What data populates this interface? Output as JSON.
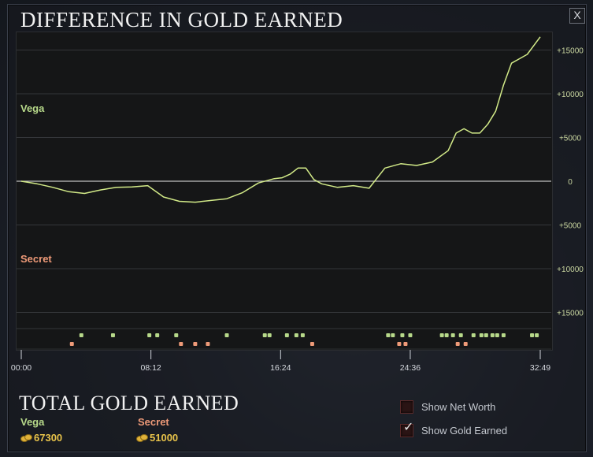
{
  "window": {
    "title": "DIFFERENCE IN GOLD EARNED",
    "close_label": "X"
  },
  "legend_labels": {
    "top_team": "Vega",
    "bottom_team": "Secret"
  },
  "colors": {
    "vega": "#b7d98a",
    "secret": "#ee9a78",
    "gold": "#e8c34a",
    "line": "#d2ea88",
    "zero_line": "#bfbfbf",
    "y_tick": "#c9d6a0"
  },
  "chart_data": {
    "type": "line",
    "title": "DIFFERENCE IN GOLD EARNED",
    "x_ticks": [
      "00:00",
      "08:12",
      "16:24",
      "24:36",
      "32:49"
    ],
    "x_tick_values": [
      0,
      8.2,
      16.4,
      24.6,
      32.82
    ],
    "y_ticks": [
      "+15000",
      "+10000",
      "+5000",
      "0",
      "+5000",
      "+10000",
      "+15000"
    ],
    "y_tick_values": [
      15000,
      10000,
      5000,
      0,
      -5000,
      -10000,
      -15000
    ],
    "ylim": [
      -17000,
      17000
    ],
    "xlim": [
      0,
      32.82
    ],
    "grid": true,
    "series": [
      {
        "name": "Vega",
        "x": [
          0,
          1,
          2,
          3,
          4,
          5,
          6,
          7,
          8,
          9,
          10,
          11,
          12,
          13,
          14,
          15,
          16,
          16.5,
          17,
          17.5,
          18,
          18.5,
          19,
          20,
          21,
          22,
          23,
          24,
          25,
          26,
          27,
          27.5,
          28,
          28.5,
          29,
          29.5,
          30,
          30.5,
          31,
          31.5,
          32,
          32.82
        ],
        "y": [
          0,
          -300,
          -700,
          -1200,
          -1400,
          -1000,
          -700,
          -650,
          -500,
          -1800,
          -2300,
          -2400,
          -2200,
          -2000,
          -1300,
          -200,
          300,
          400,
          800,
          1500,
          1500,
          200,
          -300,
          -700,
          -500,
          -800,
          1500,
          2000,
          1800,
          2200,
          3500,
          5500,
          6000,
          5500,
          5500,
          6500,
          8000,
          11000,
          13500,
          14000,
          14500,
          16500
        ]
      }
    ],
    "events": {
      "vega_rows": [
        3.8,
        5.8,
        8.1,
        8.6,
        9.8,
        13.0,
        15.4,
        15.7,
        16.8,
        17.4,
        17.8,
        23.2,
        23.5,
        24.1,
        24.6,
        26.6,
        26.9,
        27.3,
        27.8,
        28.6,
        29.1,
        29.4,
        29.8,
        30.1,
        30.5,
        32.3,
        32.6
      ],
      "secret_rows": [
        3.2,
        10.1,
        11.0,
        11.8,
        18.4,
        23.9,
        24.3,
        27.6,
        28.1
      ]
    }
  },
  "summary": {
    "title": "TOTAL GOLD EARNED",
    "teams": [
      {
        "name": "Vega",
        "gold": "67300"
      },
      {
        "name": "Secret",
        "gold": "51000"
      }
    ]
  },
  "toggles": [
    {
      "label": "Show Net Worth",
      "checked": false
    },
    {
      "label": "Show Gold Earned",
      "checked": true
    }
  ]
}
